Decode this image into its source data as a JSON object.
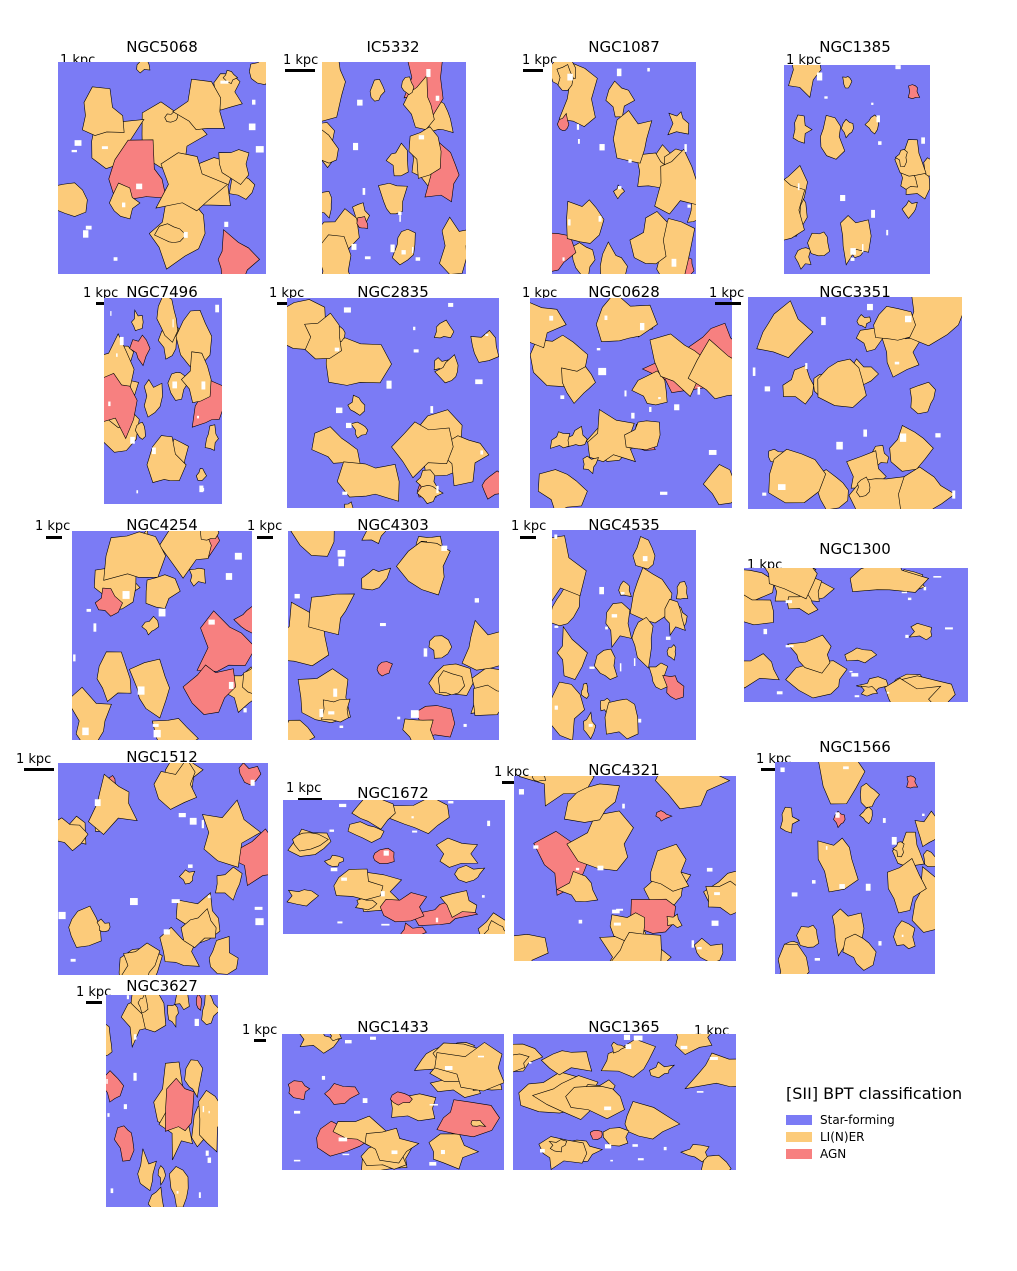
{
  "colors": {
    "star_forming": "#7b7bf5",
    "liner": "#fccb7a",
    "agn": "#f78080",
    "contour": "#000000"
  },
  "legend": {
    "title": "[SII] BPT classification",
    "items": [
      {
        "label": "Star-forming",
        "color": "#7b7bf5"
      },
      {
        "label": "LI(N)ER",
        "color": "#fccb7a"
      },
      {
        "label": "AGN",
        "color": "#f78080"
      }
    ]
  },
  "scale_label": "1 kpc",
  "panels": [
    {
      "name": "NGC5068"
    },
    {
      "name": "IC5332"
    },
    {
      "name": "NGC1087"
    },
    {
      "name": "NGC1385"
    },
    {
      "name": "NGC7496"
    },
    {
      "name": "NGC2835"
    },
    {
      "name": "NGC0628"
    },
    {
      "name": "NGC3351"
    },
    {
      "name": "NGC4254"
    },
    {
      "name": "NGC4303"
    },
    {
      "name": "NGC4535"
    },
    {
      "name": "NGC1300"
    },
    {
      "name": "NGC1512"
    },
    {
      "name": "NGC1672"
    },
    {
      "name": "NGC4321"
    },
    {
      "name": "NGC1566"
    },
    {
      "name": "NGC3627"
    },
    {
      "name": "NGC1433"
    },
    {
      "name": "NGC1365"
    }
  ]
}
